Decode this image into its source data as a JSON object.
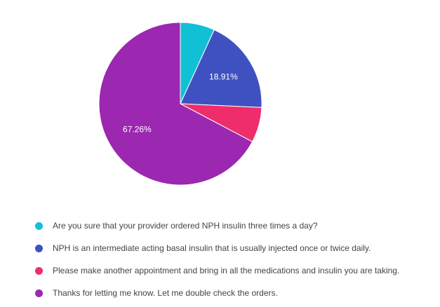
{
  "chart_data": {
    "type": "pie",
    "title": "",
    "slices": [
      {
        "label": "Are you sure that your provider ordered NPH insulin three times a day?",
        "value": 6.83,
        "color": "#12c0d6",
        "display_label": ""
      },
      {
        "label": "NPH is an intermediate acting basal insulin that is usually injected once or twice daily.",
        "value": 18.91,
        "color": "#3f51c1",
        "display_label": "18.91%"
      },
      {
        "label": "Please make another appointment and bring in all the medications and insulin you are taking.",
        "value": 7.0,
        "color": "#ef2d6a",
        "display_label": ""
      },
      {
        "label": "Thanks for letting me know. Let me double check the orders.",
        "value": 67.26,
        "color": "#9c27b0",
        "display_label": "67.26%"
      }
    ],
    "start_angle_deg": 0,
    "direction": "clockwise",
    "legend_placement": "bottom"
  }
}
